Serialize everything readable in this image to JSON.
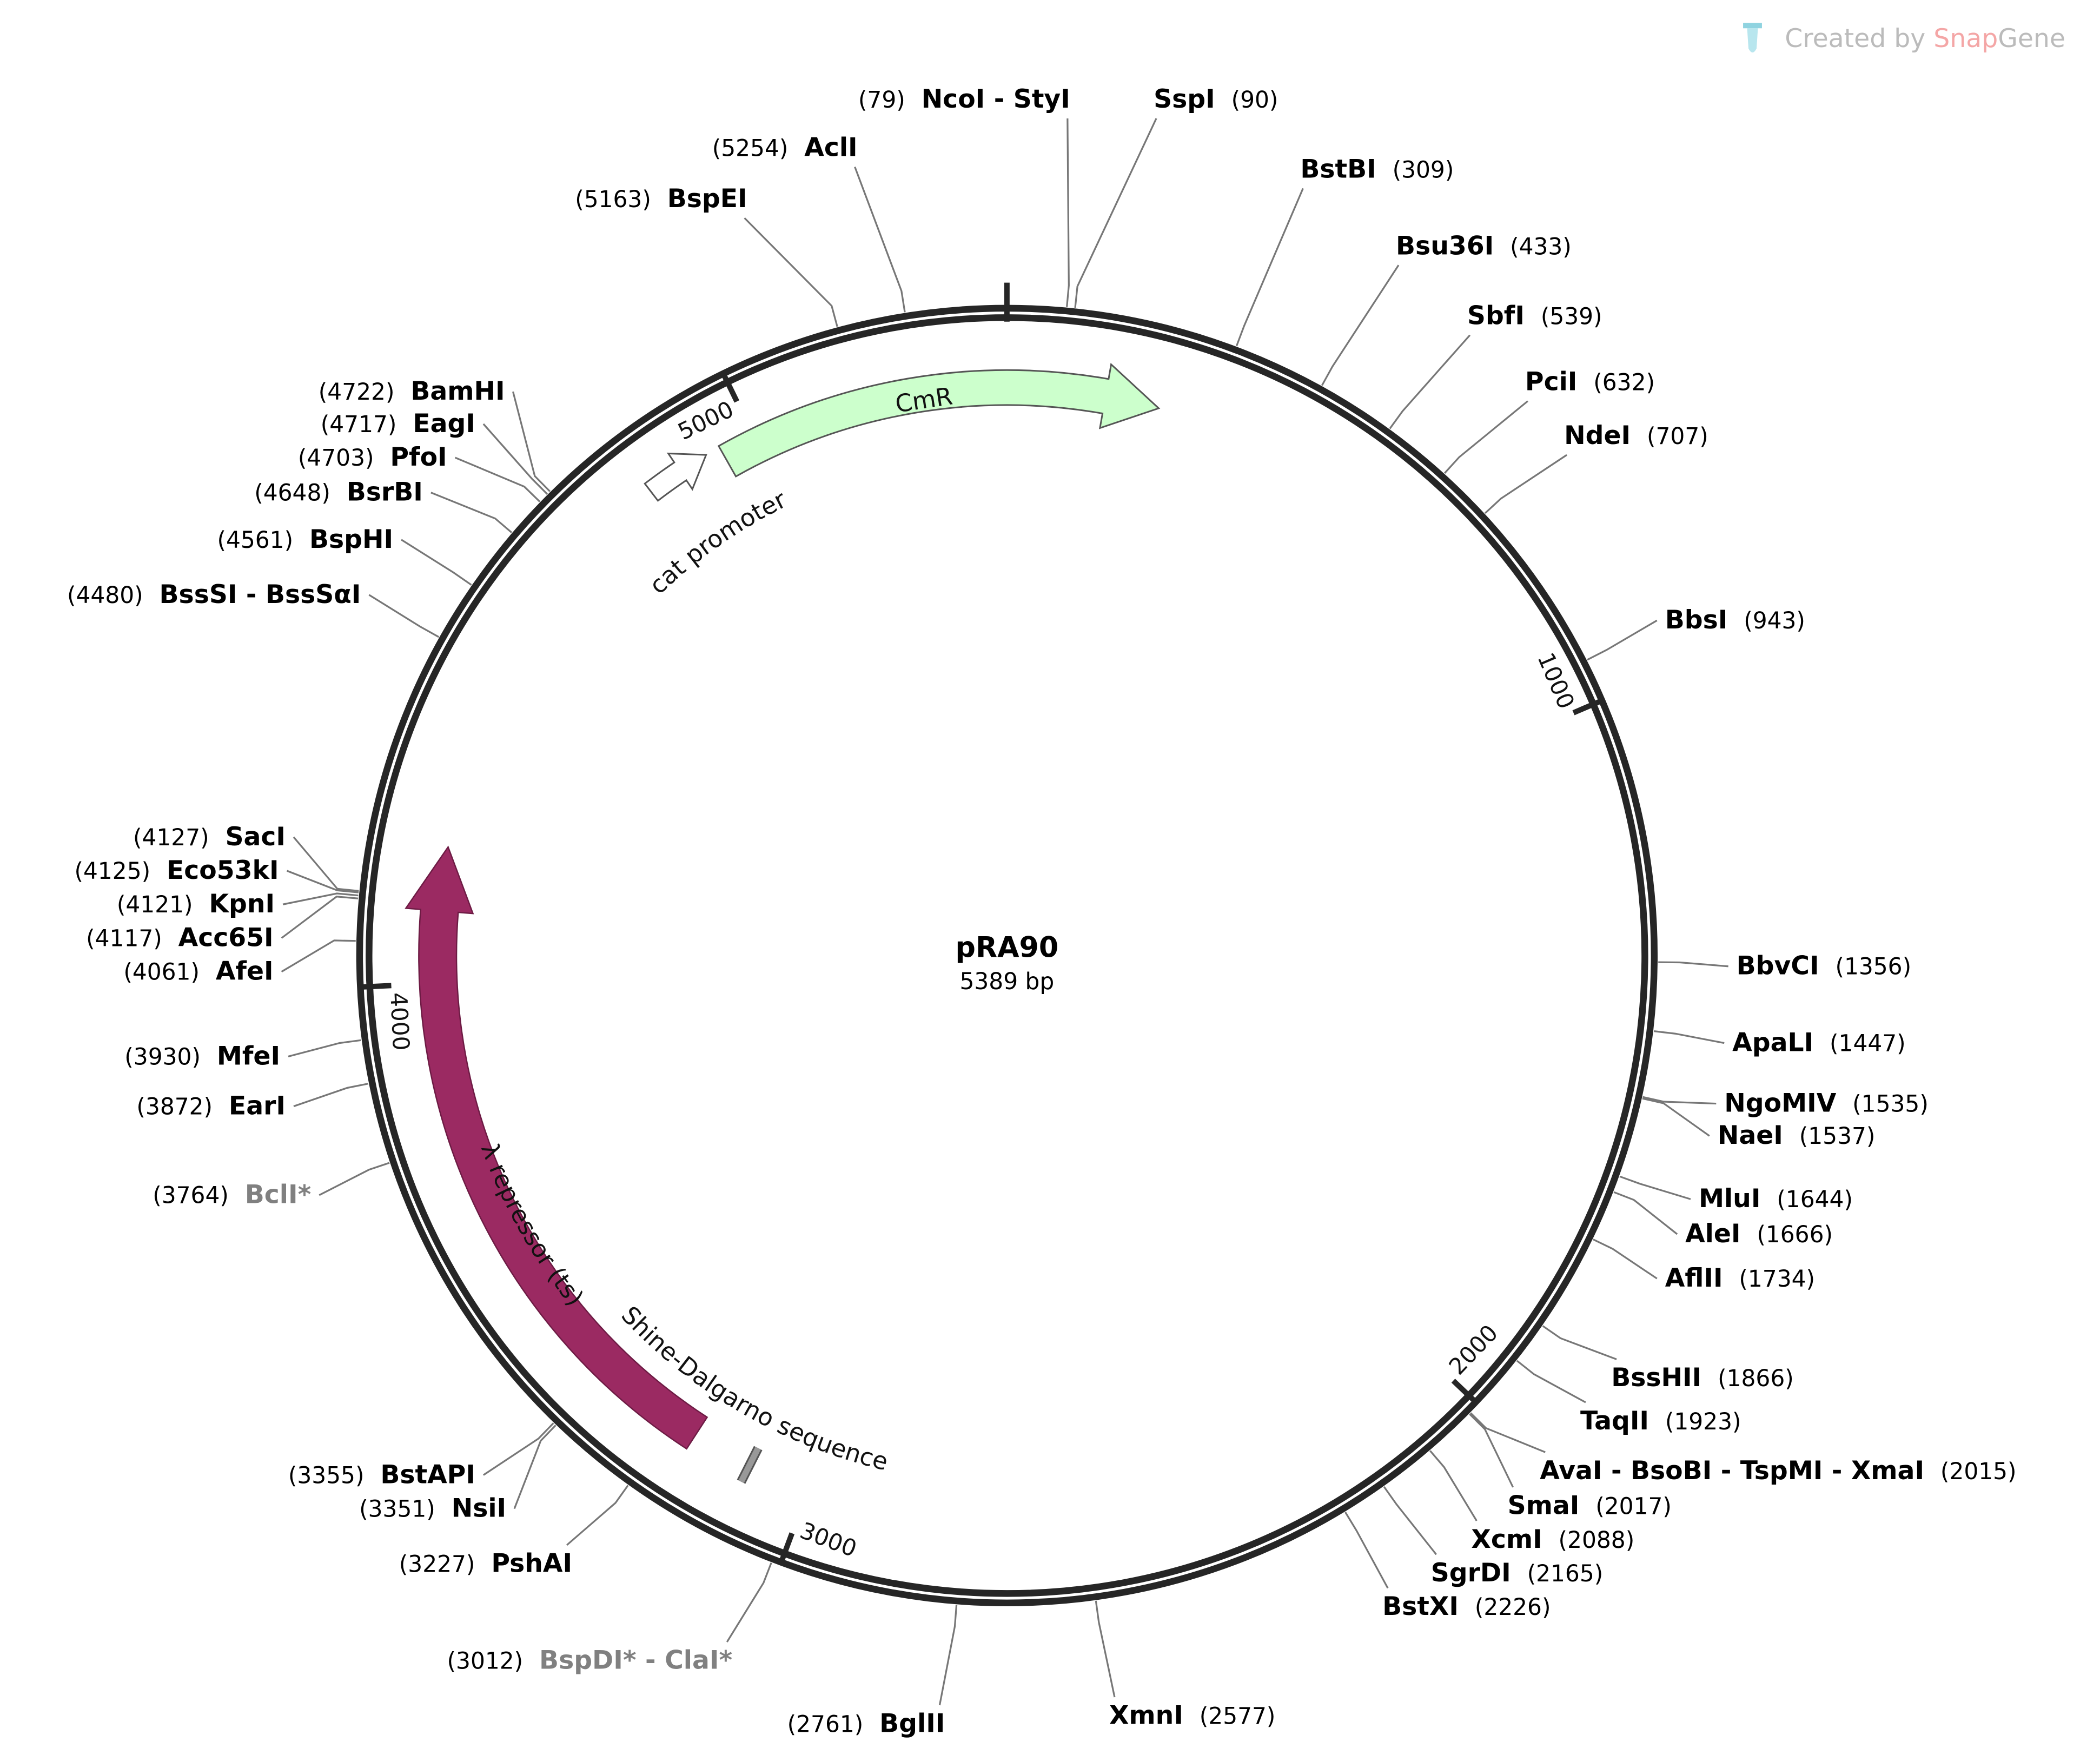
{
  "watermark": {
    "prefix": "Created by ",
    "brand1": "Snap",
    "brand2": "Gene"
  },
  "plasmid": {
    "name": "pRA90",
    "length_label": "5389 bp",
    "length": 5389
  },
  "ticks": [
    "1000",
    "2000",
    "3000",
    "4000",
    "5000"
  ],
  "features": [
    {
      "label": "CmR",
      "color": "#ccffcc",
      "direction": "forward"
    },
    {
      "label": "cat promoter",
      "color": "#ffffff",
      "direction": "forward"
    },
    {
      "label": "λ repressor (ts)",
      "color": "#9b2a62",
      "direction": "reverse"
    },
    {
      "label": "Shine-Dalgarno sequence",
      "color": "#999999"
    }
  ],
  "enzymes": [
    {
      "name": "NcoI - StyI",
      "pos": "(79)"
    },
    {
      "name": "SspI",
      "pos": "(90)"
    },
    {
      "name": "BstBI",
      "pos": "(309)"
    },
    {
      "name": "Bsu36I",
      "pos": "(433)"
    },
    {
      "name": "SbfI",
      "pos": "(539)"
    },
    {
      "name": "PciI",
      "pos": "(632)"
    },
    {
      "name": "NdeI",
      "pos": "(707)"
    },
    {
      "name": "BbsI",
      "pos": "(943)"
    },
    {
      "name": "BbvCI",
      "pos": "(1356)"
    },
    {
      "name": "ApaLI",
      "pos": "(1447)"
    },
    {
      "name": "NgoMIV",
      "pos": "(1535)"
    },
    {
      "name": "NaeI",
      "pos": "(1537)"
    },
    {
      "name": "MluI",
      "pos": "(1644)"
    },
    {
      "name": "AleI",
      "pos": "(1666)"
    },
    {
      "name": "AflII",
      "pos": "(1734)"
    },
    {
      "name": "BssHII",
      "pos": "(1866)"
    },
    {
      "name": "TaqII",
      "pos": "(1923)"
    },
    {
      "name": "AvaI - BsoBI - TspMI - XmaI",
      "pos": "(2015)"
    },
    {
      "name": "SmaI",
      "pos": "(2017)"
    },
    {
      "name": "XcmI",
      "pos": "(2088)"
    },
    {
      "name": "SgrDI",
      "pos": "(2165)"
    },
    {
      "name": "BstXI",
      "pos": "(2226)"
    },
    {
      "name": "XmnI",
      "pos": "(2577)"
    },
    {
      "name": "BglII",
      "pos": "(2761)"
    },
    {
      "name": "BspDI* - ClaI*",
      "pos": "(3012)",
      "nonunique": true
    },
    {
      "name": "PshAI",
      "pos": "(3227)"
    },
    {
      "name": "NsiI",
      "pos": "(3351)"
    },
    {
      "name": "BstAPI",
      "pos": "(3355)"
    },
    {
      "name": "BclI*",
      "pos": "(3764)",
      "nonunique": true
    },
    {
      "name": "EarI",
      "pos": "(3872)"
    },
    {
      "name": "MfeI",
      "pos": "(3930)"
    },
    {
      "name": "AfeI",
      "pos": "(4061)"
    },
    {
      "name": "Acc65I",
      "pos": "(4117)"
    },
    {
      "name": "KpnI",
      "pos": "(4121)"
    },
    {
      "name": "Eco53kI",
      "pos": "(4125)"
    },
    {
      "name": "SacI",
      "pos": "(4127)"
    },
    {
      "name": "BssSI - BssSαI",
      "pos": "(4480)"
    },
    {
      "name": "BspHI",
      "pos": "(4561)"
    },
    {
      "name": "BsrBI",
      "pos": "(4648)"
    },
    {
      "name": "PfoI",
      "pos": "(4703)"
    },
    {
      "name": "EagI",
      "pos": "(4717)"
    },
    {
      "name": "BamHI",
      "pos": "(4722)"
    },
    {
      "name": "BspEI",
      "pos": "(5163)"
    },
    {
      "name": "AclI",
      "pos": "(5254)"
    }
  ]
}
